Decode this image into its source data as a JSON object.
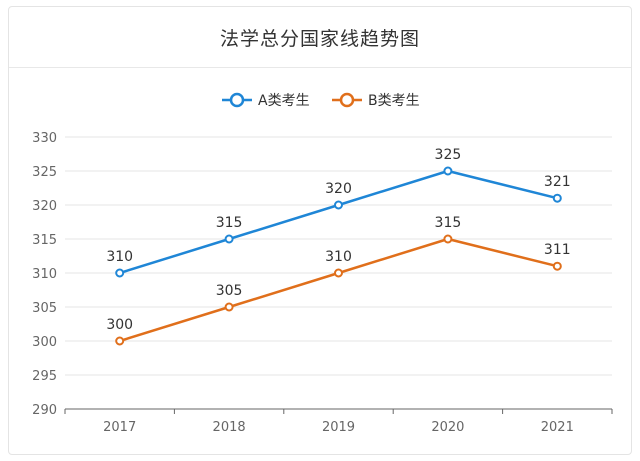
{
  "chart_data": {
    "type": "line",
    "title": "法学总分国家线趋势图",
    "categories": [
      "2017",
      "2018",
      "2019",
      "2020",
      "2021"
    ],
    "series": [
      {
        "name": "A类考生",
        "color": "#1f86d6",
        "values": [
          310,
          315,
          320,
          325,
          321
        ]
      },
      {
        "name": "B类考生",
        "color": "#e06f1b",
        "values": [
          300,
          305,
          310,
          315,
          311
        ]
      }
    ],
    "yticks": [
      290,
      295,
      300,
      305,
      310,
      315,
      320,
      325,
      330
    ],
    "ylim": [
      290,
      330
    ],
    "xlabel": "",
    "ylabel": "",
    "grid": true,
    "legend_position": "top-center"
  }
}
